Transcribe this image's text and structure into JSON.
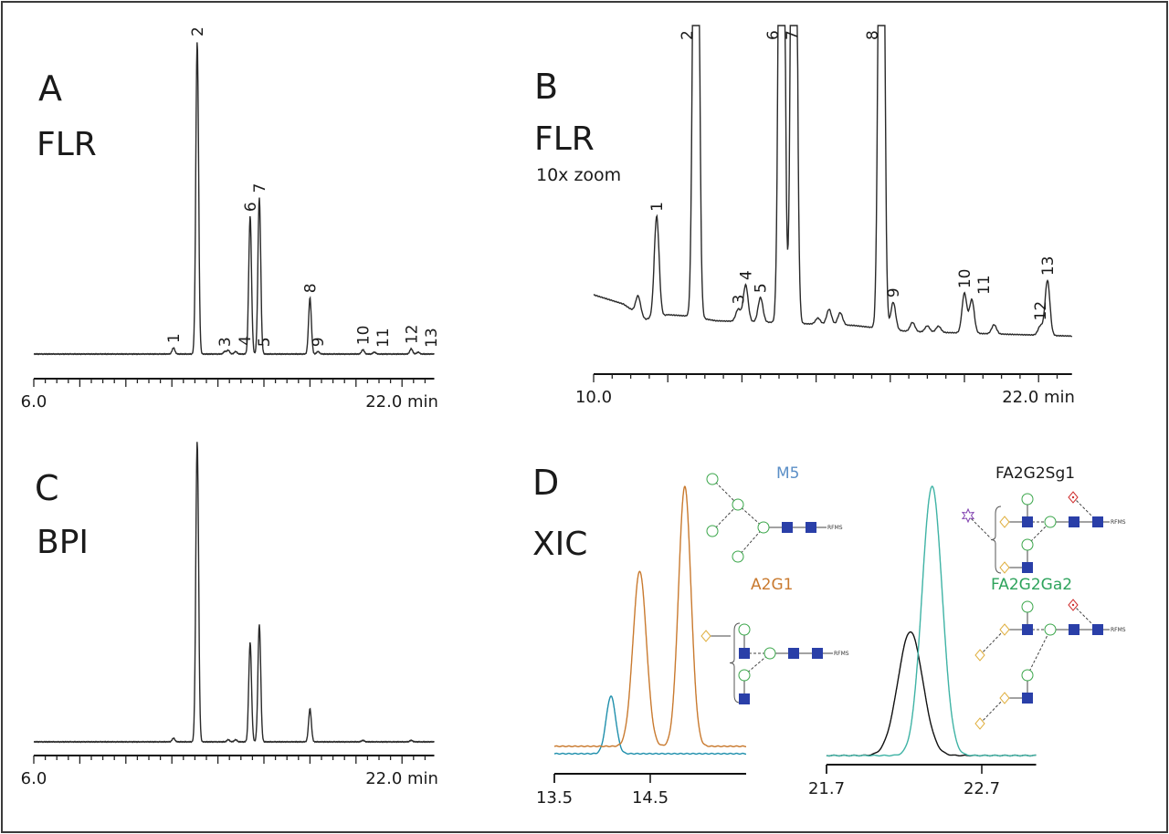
{
  "panels": {
    "A": {
      "letter": "A",
      "detector": "FLR",
      "axis": {
        "start_label": "6.0",
        "end_label": "22.0 min",
        "xlim": [
          6.0,
          23.4
        ],
        "major_step": 2,
        "minor_step": 0.5
      },
      "ylim": [
        0,
        100
      ],
      "peaks": [
        {
          "label": "1",
          "rt": 12.07,
          "height": 2.0
        },
        {
          "label": "2",
          "rt": 13.1,
          "height": 100
        },
        {
          "label": "3",
          "rt": 14.3,
          "height": 0.8
        },
        {
          "label": "4",
          "rt": 14.45,
          "height": 1.2
        },
        {
          "label": "5",
          "rt": 14.77,
          "height": 0.8
        },
        {
          "label": "6",
          "rt": 15.4,
          "height": 44
        },
        {
          "label": "7",
          "rt": 15.8,
          "height": 50
        },
        {
          "label": "8",
          "rt": 18.0,
          "height": 18
        },
        {
          "label": "9",
          "rt": 18.35,
          "height": 0.8
        },
        {
          "label": "10",
          "rt": 20.3,
          "height": 1.4
        },
        {
          "label": "11",
          "rt": 20.8,
          "height": 0.6
        },
        {
          "label": "12",
          "rt": 22.4,
          "height": 1.7
        },
        {
          "label": "13",
          "rt": 22.7,
          "height": 0.6
        }
      ]
    },
    "B": {
      "letter": "B",
      "detector": "FLR",
      "note": "10x zoom",
      "axis": {
        "start_label": "10.0",
        "end_label": "22.0 min",
        "xlim": [
          10.0,
          22.9
        ],
        "major_step": 2,
        "minor_step": 0.5
      },
      "ylim": [
        0,
        100
      ],
      "baseline": [
        [
          10.0,
          14
        ],
        [
          10.8,
          11
        ],
        [
          11.4,
          6
        ],
        [
          12.0,
          7.5
        ],
        [
          12.6,
          7
        ],
        [
          13.3,
          5.5
        ],
        [
          14.8,
          5
        ],
        [
          15.8,
          4.5
        ],
        [
          17.0,
          4
        ],
        [
          18.5,
          2
        ],
        [
          22.9,
          0.5
        ]
      ],
      "peaks": [
        {
          "label": "",
          "rt": 11.2,
          "height": 6
        },
        {
          "label": "1",
          "rt": 11.7,
          "height": 33
        },
        {
          "label": "2",
          "rt": 12.76,
          "height": 300
        },
        {
          "label": "3",
          "rt": 13.9,
          "height": 4
        },
        {
          "label": "4",
          "rt": 14.1,
          "height": 12
        },
        {
          "label": "5",
          "rt": 14.5,
          "height": 8
        },
        {
          "label": "6",
          "rt": 15.07,
          "height": 300
        },
        {
          "label": "7",
          "rt": 15.4,
          "height": 300
        },
        {
          "label": "",
          "rt": 16.05,
          "height": 2
        },
        {
          "label": "",
          "rt": 16.35,
          "height": 5
        },
        {
          "label": "",
          "rt": 16.65,
          "height": 4
        },
        {
          "label": "8",
          "rt": 17.76,
          "height": 300
        },
        {
          "label": "9",
          "rt": 18.08,
          "height": 9
        },
        {
          "label": "",
          "rt": 18.6,
          "height": 3
        },
        {
          "label": "",
          "rt": 19.0,
          "height": 2
        },
        {
          "label": "",
          "rt": 19.3,
          "height": 2
        },
        {
          "label": "10",
          "rt": 20.0,
          "height": 13
        },
        {
          "label": "11",
          "rt": 20.2,
          "height": 11
        },
        {
          "label": "",
          "rt": 20.8,
          "height": 3
        },
        {
          "label": "12",
          "rt": 22.05,
          "height": 3
        },
        {
          "label": "13",
          "rt": 22.24,
          "height": 18
        }
      ]
    },
    "C": {
      "letter": "C",
      "detector": "BPI",
      "axis": {
        "start_label": "6.0",
        "end_label": "22.0 min",
        "xlim": [
          6.0,
          23.4
        ],
        "major_step": 2,
        "minor_step": 0.5
      },
      "ylim": [
        0,
        100
      ],
      "peaks": [
        {
          "rt": 12.07,
          "height": 1.2
        },
        {
          "rt": 13.1,
          "height": 100
        },
        {
          "rt": 14.45,
          "height": 0.7
        },
        {
          "rt": 14.77,
          "height": 0.7
        },
        {
          "rt": 15.4,
          "height": 33
        },
        {
          "rt": 15.8,
          "height": 39
        },
        {
          "rt": 18.0,
          "height": 11
        },
        {
          "rt": 20.3,
          "height": 0.5
        },
        {
          "rt": 22.4,
          "height": 0.5
        }
      ]
    },
    "D": {
      "letter": "D",
      "detector": "XIC",
      "left": {
        "axis": {
          "tick_labels": [
            "13.5",
            "14.5"
          ],
          "ticks": [
            13.5,
            14.5
          ],
          "xlim": [
            13.5,
            15.5
          ]
        },
        "traces": [
          {
            "glycan": "M5",
            "color": "#1f8fac",
            "baseline": 0,
            "peaks": [
              {
                "rt": 14.09,
                "height": 21,
                "sigma": 0.05
              }
            ]
          },
          {
            "glycan": "A2G1",
            "color": "#c97a2f",
            "baseline": 2.7,
            "peaks": [
              {
                "rt": 14.39,
                "height": 64,
                "sigma": 0.07
              },
              {
                "rt": 14.86,
                "height": 95,
                "sigma": 0.065
              }
            ]
          }
        ]
      },
      "right": {
        "axis": {
          "tick_labels": [
            "21.7",
            "22.7"
          ],
          "ticks": [
            21.7,
            22.7
          ],
          "xlim": [
            21.7,
            23.05
          ]
        },
        "traces": [
          {
            "glycan": "FA2G2Sg1",
            "color": "#111111",
            "baseline": 0,
            "peaks": [
              {
                "rt": 22.24,
                "height": 46,
                "sigma": 0.08
              }
            ]
          },
          {
            "glycan": "FA2G2Ga2",
            "color": "#3fb3a5",
            "baseline": 0,
            "peaks": [
              {
                "rt": 22.38,
                "height": 100,
                "sigma": 0.065
              }
            ]
          }
        ]
      },
      "glycans": {
        "m5": {
          "name": "M5",
          "color": "#5b8fc7",
          "tag": "RFMS"
        },
        "a2g1": {
          "name": "A2G1",
          "color": "#c97a2f",
          "tag": "RFMS"
        },
        "fa2g2sg1": {
          "name": "FA2G2Sg1",
          "color": "#1a1a1a",
          "tag": "RFMS"
        },
        "fa2g2ga2": {
          "name": "FA2G2Ga2",
          "color": "#2ea35c",
          "tag": "RFMS"
        }
      }
    }
  },
  "colors": {
    "trace": "#2a2a2a",
    "mannose": "#3aa64a",
    "glcnac": "#2a3fa8",
    "galactose_alpha": "#e0b040",
    "fucose": "#d03030",
    "sialic_gc": "#8040b0"
  }
}
